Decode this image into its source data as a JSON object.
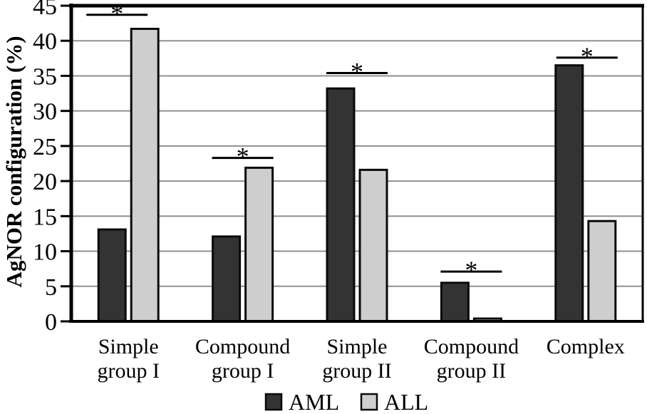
{
  "chart_data": {
    "type": "bar",
    "title": "",
    "ylabel": "AgNOR configuration (%)",
    "xlabel": "",
    "ylim": [
      0,
      45
    ],
    "yticks": [
      0,
      5,
      10,
      15,
      20,
      25,
      30,
      35,
      40,
      45
    ],
    "grid": true,
    "legend_position": "bottom-center",
    "categories": [
      "Simple group I",
      "Compound group I",
      "Simple group II",
      "Compound group II",
      "Complex"
    ],
    "category_lines": [
      [
        "Simple",
        "group I"
      ],
      [
        "Compound",
        "group I"
      ],
      [
        "Simple",
        "group II"
      ],
      [
        "Compound",
        "group II"
      ],
      [
        "Complex"
      ]
    ],
    "series": [
      {
        "name": "AML",
        "color": "#333333",
        "values": [
          13.1,
          12.1,
          33.2,
          5.5,
          36.5
        ]
      },
      {
        "name": "ALL",
        "color": "#cecece",
        "values": [
          41.7,
          21.9,
          21.6,
          0.4,
          14.3
        ]
      }
    ],
    "significance_markers": [
      {
        "category_index": 0,
        "label": "*",
        "line_y": 43.7,
        "dx": -16
      },
      {
        "category_index": 1,
        "label": "*",
        "line_y": 23.3,
        "dx": 0
      },
      {
        "category_index": 2,
        "label": "*",
        "line_y": 35.4,
        "dx": 0
      },
      {
        "category_index": 3,
        "label": "*",
        "line_y": 7.1,
        "dx": 0
      },
      {
        "category_index": 4,
        "label": "*",
        "line_y": 37.6,
        "dx": 2
      }
    ],
    "colors": {
      "axis": "#000000",
      "gridline": "#909090",
      "bar_border": "#0a0a0a",
      "background": "#ffffff",
      "text": "#000000"
    }
  }
}
